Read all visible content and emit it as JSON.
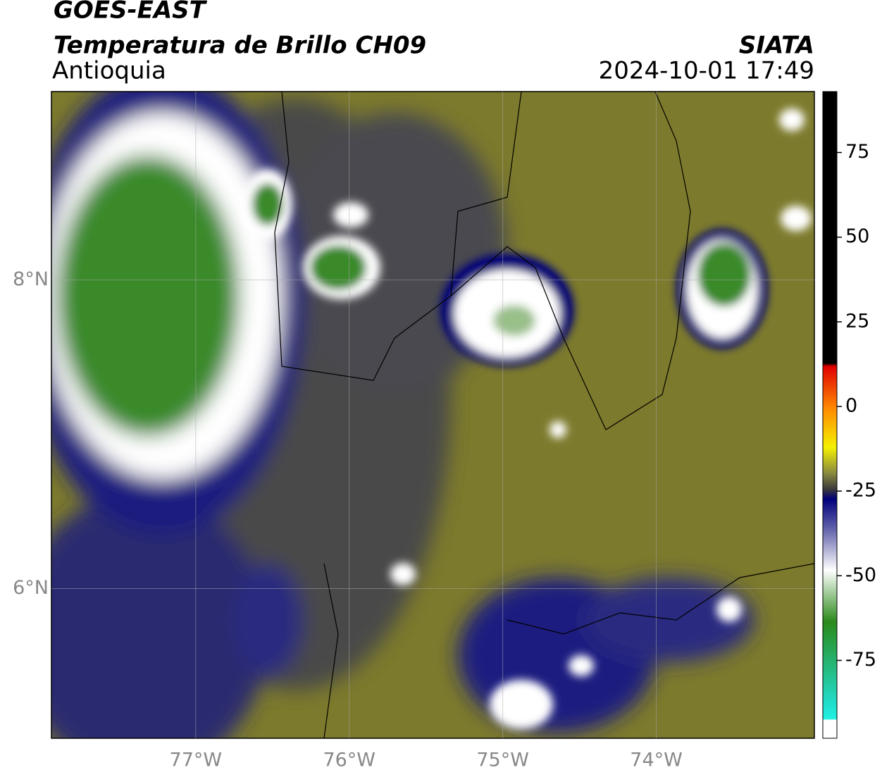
{
  "header": {
    "title": "GOES-EAST",
    "subtitle": "Temperatura de Brillo CH09",
    "region": "Antioquia",
    "source": "SIATA",
    "timestamp": "2024-10-01 17:49"
  },
  "map": {
    "xlim": [
      -77.94,
      -72.97
    ],
    "ylim": [
      5.03,
      9.22
    ],
    "xticks": [
      {
        "value": -77,
        "label": "77°W"
      },
      {
        "value": -76,
        "label": "76°W"
      },
      {
        "value": -75,
        "label": "75°W"
      },
      {
        "value": -74,
        "label": "74°W"
      }
    ],
    "yticks": [
      {
        "value": 8,
        "label": "8°N"
      },
      {
        "value": 6,
        "label": "6°N"
      }
    ],
    "grid": true
  },
  "colorbar": {
    "lim": [
      -98,
      93
    ],
    "ticks": [
      75,
      50,
      25,
      0,
      -25,
      -50,
      -75
    ]
  }
}
